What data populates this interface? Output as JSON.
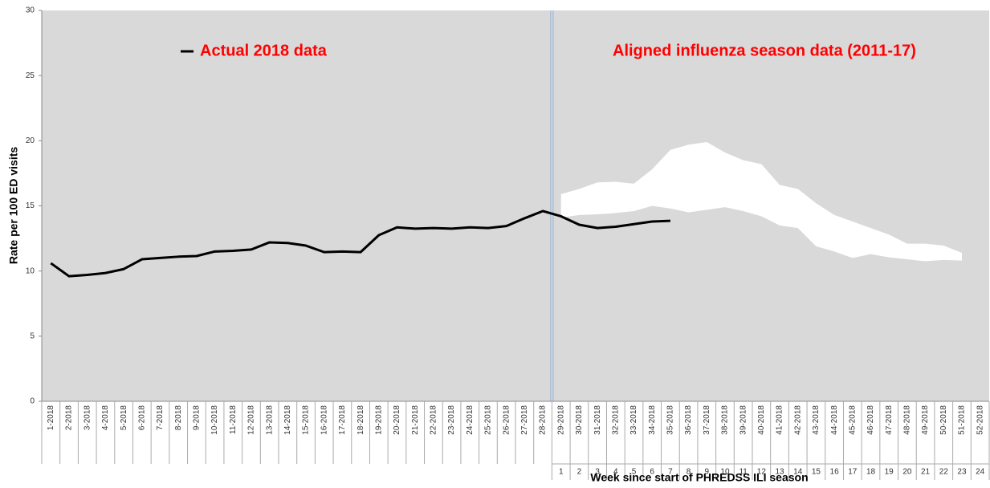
{
  "chart_data": {
    "type": "line",
    "y_label": "Rate per 100 ED visits",
    "x_label": "Week since start of PHREDSS ILI season",
    "categories": [
      "1-2018",
      "2-2018",
      "3-2018",
      "4-2018",
      "5-2018",
      "6-2018",
      "7-2018",
      "8-2018",
      "9-2018",
      "10-2018",
      "11-2018",
      "12-2018",
      "13-2018",
      "14-2018",
      "15-2018",
      "16-2018",
      "17-2018",
      "18-2018",
      "19-2018",
      "20-2018",
      "21-2018",
      "22-2018",
      "23-2018",
      "24-2018",
      "25-2018",
      "26-2018",
      "27-2018",
      "28-2018",
      "29-2018",
      "30-2018",
      "31-2018",
      "32-2018",
      "33-2018",
      "34-2018",
      "35-2018",
      "36-2018",
      "37-2018",
      "38-2018",
      "39-2018",
      "40-2018",
      "41-2018",
      "42-2018",
      "43-2018",
      "44-2018",
      "45-2018",
      "46-2018",
      "47-2018",
      "48-2018",
      "49-2018",
      "50-2018",
      "51-2018",
      "52-2018"
    ],
    "season_weeks": [
      null,
      null,
      null,
      null,
      null,
      null,
      null,
      null,
      null,
      null,
      null,
      null,
      null,
      null,
      null,
      null,
      null,
      null,
      null,
      null,
      null,
      null,
      null,
      null,
      null,
      null,
      null,
      null,
      1,
      2,
      3,
      4,
      5,
      6,
      7,
      8,
      9,
      10,
      11,
      12,
      13,
      14,
      15,
      16,
      17,
      18,
      19,
      20,
      21,
      22,
      23,
      24
    ],
    "series": [
      {
        "name": "Actual 2018 data",
        "color": "#000000",
        "values": [
          10.6,
          9.6,
          9.7,
          9.85,
          10.15,
          10.9,
          11.0,
          11.1,
          11.15,
          11.5,
          11.55,
          11.65,
          12.2,
          12.15,
          11.95,
          11.45,
          11.5,
          11.45,
          12.75,
          13.35,
          13.25,
          13.3,
          13.25,
          13.35,
          13.3,
          13.45,
          14.05,
          14.6,
          14.2,
          13.55,
          13.3,
          13.4,
          13.6,
          13.8,
          13.85,
          null,
          null,
          null,
          null,
          null,
          null,
          null,
          null,
          null,
          null,
          null,
          null,
          null,
          null,
          null,
          null,
          null
        ]
      }
    ],
    "band": {
      "name": "Aligned influenza season data (2011-17)",
      "color": "#ffffff",
      "upper": [
        null,
        null,
        null,
        null,
        null,
        null,
        null,
        null,
        null,
        null,
        null,
        null,
        null,
        null,
        null,
        null,
        null,
        null,
        null,
        null,
        null,
        null,
        null,
        null,
        null,
        null,
        null,
        null,
        15.9,
        16.3,
        16.8,
        16.85,
        16.7,
        17.8,
        19.3,
        19.7,
        19.9,
        19.1,
        18.5,
        18.2,
        16.6,
        16.3,
        15.2,
        14.3,
        13.8,
        13.3,
        12.8,
        12.1,
        12.1,
        11.95,
        11.4,
        null
      ],
      "lower": [
        null,
        null,
        null,
        null,
        null,
        null,
        null,
        null,
        null,
        null,
        null,
        null,
        null,
        null,
        null,
        null,
        null,
        null,
        null,
        null,
        null,
        null,
        null,
        null,
        null,
        null,
        null,
        null,
        14.1,
        14.3,
        14.35,
        14.45,
        14.6,
        15.0,
        14.8,
        14.5,
        14.7,
        14.9,
        14.6,
        14.2,
        13.5,
        13.3,
        11.9,
        11.5,
        11.0,
        11.3,
        11.05,
        10.9,
        10.75,
        10.85,
        10.8,
        null
      ]
    },
    "ylim": [
      0,
      30
    ],
    "yticks": [
      0,
      5,
      10,
      15,
      20,
      25,
      30
    ],
    "plot_color": "#d9d9d9"
  }
}
